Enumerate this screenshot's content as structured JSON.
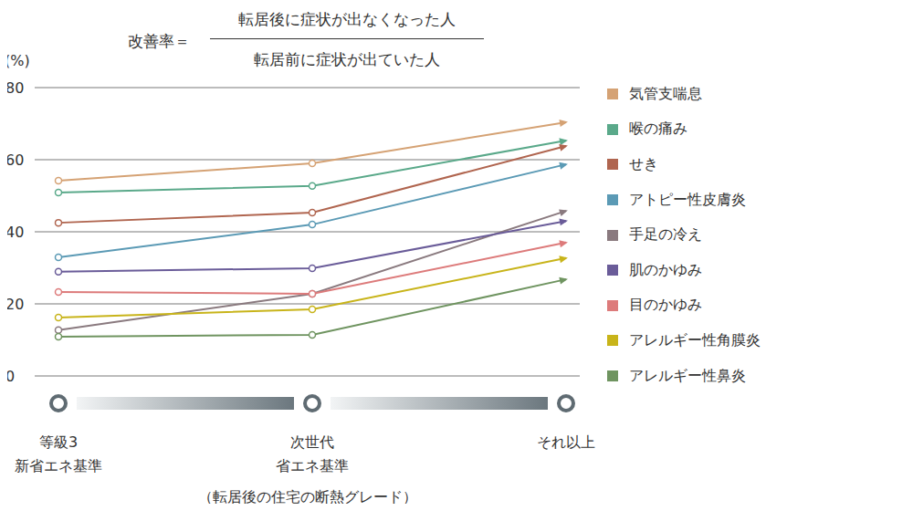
{
  "chart_data": {
    "type": "line",
    "title": "改善率＝",
    "title_fraction": {
      "numerator": "転居後に症状が出なくなった人",
      "denominator": "転居前に症状が出ていた人"
    },
    "y_label": "(%)",
    "x_label": "（転居後の住宅の断熱グレード）",
    "categories": [
      "等級3\n新省エネ基準",
      "次世代\n省エネ基準",
      "それ以上"
    ],
    "ylim": [
      0,
      80
    ],
    "yticks": [
      0,
      20,
      40,
      60,
      80
    ],
    "grid": true,
    "legend": "right",
    "marker": "circle",
    "series": [
      {
        "name": "気管支喘息",
        "color": "#d5a274",
        "values": [
          54.2,
          59,
          70.4
        ]
      },
      {
        "name": "喉の痛み",
        "color": "#5aa98a",
        "values": [
          50.9,
          52.7,
          65.3
        ]
      },
      {
        "name": "せき",
        "color": "#b0654f",
        "values": [
          42.5,
          45.3,
          63.8
        ]
      },
      {
        "name": "アトピー性皮膚炎",
        "color": "#5b9ab5",
        "values": [
          32.9,
          42,
          58.7
        ]
      },
      {
        "name": "手足の冷え",
        "color": "#8a7a7f",
        "values": [
          12.7,
          22.8,
          45.8
        ]
      },
      {
        "name": "肌のかゆみ",
        "color": "#6a5c99",
        "values": [
          28.9,
          29.9,
          43
        ]
      },
      {
        "name": "目のかゆみ",
        "color": "#dd7b7b",
        "values": [
          23.3,
          22.8,
          37
        ]
      },
      {
        "name": "アレルギー性角膜炎",
        "color": "#c8b41a",
        "values": [
          16.2,
          18.5,
          32.7
        ]
      },
      {
        "name": "アレルギー性鼻炎",
        "color": "#6f9460",
        "values": [
          10.9,
          11.4,
          26.8
        ]
      }
    ]
  }
}
